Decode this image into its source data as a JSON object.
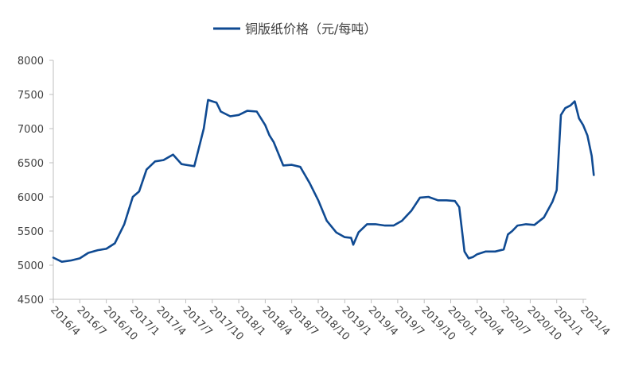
{
  "chart_data": {
    "type": "line",
    "title": "",
    "xlabel": "",
    "ylabel": "",
    "ylim": [
      4500,
      8000
    ],
    "yticks": [
      4500,
      5000,
      5500,
      6000,
      6500,
      7000,
      7500,
      8000
    ],
    "xtick_labels": [
      "2016/4",
      "2016/7",
      "2016/10",
      "2017/1",
      "2017/4",
      "2017/7",
      "2017/10",
      "2018/1",
      "2018/4",
      "2018/7",
      "2018/10",
      "2019/1",
      "2019/4",
      "2019/7",
      "2019/10",
      "2020/1",
      "2020/4",
      "2020/7",
      "2020/10",
      "2021/1",
      "2021/4"
    ],
    "legend_position": "top-center",
    "grid": false,
    "series": [
      {
        "name": "铜版纸价格（元/每吨）",
        "color": "#0f4a92",
        "x": [
          2016.25,
          2016.33,
          2016.42,
          2016.5,
          2016.58,
          2016.67,
          2016.75,
          2016.83,
          2016.92,
          2017.0,
          2017.06,
          2017.13,
          2017.21,
          2017.29,
          2017.38,
          2017.46,
          2017.5,
          2017.58,
          2017.67,
          2017.71,
          2017.75,
          2017.79,
          2017.83,
          2017.92,
          2018.0,
          2018.08,
          2018.17,
          2018.25,
          2018.29,
          2018.33,
          2018.42,
          2018.5,
          2018.58,
          2018.67,
          2018.75,
          2018.83,
          2018.92,
          2019.0,
          2019.06,
          2019.08,
          2019.13,
          2019.21,
          2019.29,
          2019.38,
          2019.46,
          2019.54,
          2019.63,
          2019.71,
          2019.79,
          2019.88,
          2019.96,
          2020.04,
          2020.08,
          2020.13,
          2020.17,
          2020.21,
          2020.25,
          2020.33,
          2020.42,
          2020.5,
          2020.54,
          2020.58,
          2020.63,
          2020.71,
          2020.79,
          2020.88,
          2020.96,
          2021.0,
          2021.04,
          2021.08,
          2021.13,
          2021.17,
          2021.21,
          2021.25,
          2021.29,
          2021.33,
          2021.35
        ],
        "values": [
          5110,
          5050,
          5070,
          5100,
          5180,
          5220,
          5240,
          5320,
          5600,
          6000,
          6080,
          6400,
          6520,
          6540,
          6620,
          6480,
          6470,
          6450,
          7000,
          7420,
          7400,
          7380,
          7250,
          7180,
          7200,
          7260,
          7250,
          7050,
          6900,
          6800,
          6460,
          6470,
          6440,
          6200,
          5950,
          5650,
          5480,
          5410,
          5400,
          5300,
          5480,
          5600,
          5600,
          5580,
          5580,
          5650,
          5800,
          5990,
          6000,
          5950,
          5950,
          5940,
          5850,
          5200,
          5100,
          5120,
          5160,
          5200,
          5200,
          5230,
          5450,
          5500,
          5580,
          5600,
          5590,
          5700,
          5930,
          6100,
          7200,
          7300,
          7340,
          7400,
          7150,
          7050,
          6900,
          6600,
          6320
        ]
      }
    ]
  }
}
